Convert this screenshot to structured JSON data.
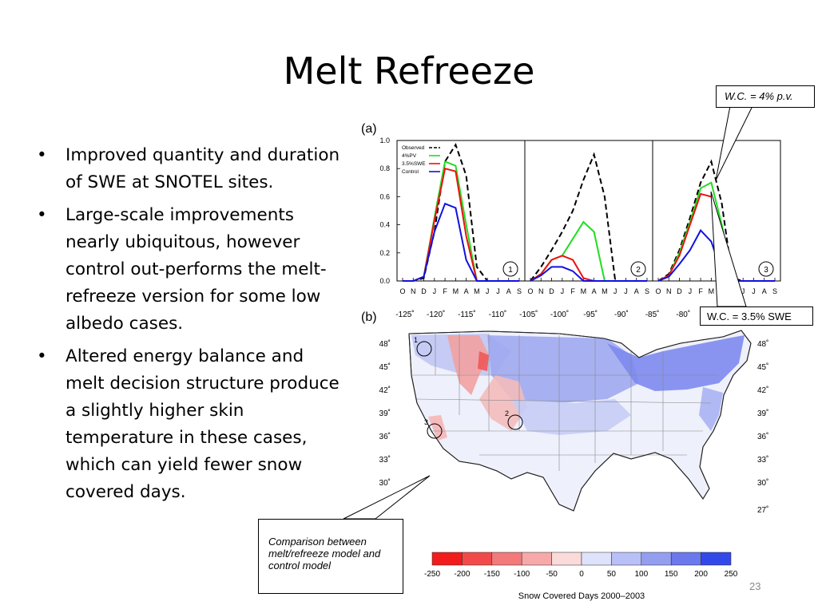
{
  "slide": {
    "title": "Melt Refreeze",
    "bullets": [
      "Improved quantity and duration of SWE at SNOTEL sites.",
      "Large-scale improvements nearly ubiquitous, however control out-performs the melt-refreeze version for some low albedo cases.",
      "Altered energy balance and melt decision structure produce a slightly higher skin temperature in these cases, which can yield fewer snow covered days."
    ],
    "bullet_glyph": "•",
    "page_number": "23"
  },
  "callouts": {
    "wc_pv": "W.C. = 4% p.v.",
    "wc_swe": "W.C. = 3.5% SWE",
    "comparison": "Comparison between melt/refreeze model and control model"
  },
  "panel_a": {
    "label": "(a)",
    "y_ticks": [
      "1.0",
      "0.8",
      "0.6",
      "0.4",
      "0.2",
      "0.0"
    ],
    "months": [
      "O",
      "N",
      "D",
      "J",
      "F",
      "M",
      "A",
      "M",
      "J",
      "J",
      "A",
      "S"
    ],
    "legend": [
      "Observed",
      "4%PV",
      "3.5%SWE",
      "Control"
    ],
    "site_labels": [
      "1",
      "2",
      "3"
    ],
    "colors": {
      "Observed": "#000000",
      "4%PV": "#22dd22",
      "3.5%SWE": "#ee1111",
      "Control": "#1111dd"
    }
  },
  "panel_b": {
    "label": "(b)",
    "lon_labels": [
      "-125˚",
      "-120˚",
      "-115˚",
      "-110˚",
      "-105˚",
      "-100˚",
      "-95˚",
      "-90˚",
      "-85˚",
      "-80˚"
    ],
    "lat_labels": [
      "48˚",
      "45˚",
      "42˚",
      "39˚",
      "36˚",
      "33˚",
      "30˚",
      "27˚"
    ],
    "site_markers": [
      "1",
      "2",
      "3"
    ],
    "colorbar_ticks": [
      "-250",
      "-200",
      "-150",
      "-100",
      "-50",
      "0",
      "50",
      "100",
      "150",
      "200",
      "250"
    ],
    "colorbar_colors": [
      "#f21c1c",
      "#f24a4a",
      "#f27a7a",
      "#f7a9a9",
      "#fbdada",
      "#dfe2fb",
      "#b9c0f7",
      "#939ef0",
      "#6b79ec",
      "#3348e8"
    ],
    "colorbar_label": "Snow Covered Days 2000–2003"
  },
  "chart_data": [
    {
      "type": "line",
      "panel": "1",
      "x": [
        "O",
        "N",
        "D",
        "J",
        "F",
        "M",
        "A",
        "M",
        "J",
        "J",
        "A",
        "S"
      ],
      "ylim": [
        0,
        1
      ],
      "series": [
        {
          "name": "Observed",
          "values": [
            0,
            0,
            0.02,
            0.35,
            0.85,
            0.97,
            0.75,
            0.1,
            0,
            0,
            0,
            0
          ]
        },
        {
          "name": "4%PV",
          "values": [
            0,
            0,
            0.03,
            0.45,
            0.85,
            0.82,
            0.4,
            0,
            0,
            0,
            0,
            0
          ]
        },
        {
          "name": "3.5%SWE",
          "values": [
            0,
            0,
            0.03,
            0.43,
            0.8,
            0.78,
            0.32,
            0,
            0,
            0,
            0,
            0
          ]
        },
        {
          "name": "Control",
          "values": [
            0,
            0,
            0.03,
            0.35,
            0.55,
            0.52,
            0.15,
            0,
            0,
            0,
            0,
            0
          ]
        }
      ]
    },
    {
      "type": "line",
      "panel": "2",
      "x": [
        "O",
        "N",
        "D",
        "J",
        "F",
        "M",
        "A",
        "M",
        "J",
        "J",
        "A",
        "S"
      ],
      "ylim": [
        0,
        1
      ],
      "series": [
        {
          "name": "Observed",
          "values": [
            0,
            0.1,
            0.22,
            0.35,
            0.5,
            0.72,
            0.9,
            0.6,
            0,
            0,
            0,
            0
          ]
        },
        {
          "name": "4%PV",
          "values": [
            0,
            0.05,
            0.15,
            0.18,
            0.3,
            0.42,
            0.35,
            0,
            0,
            0,
            0,
            0
          ]
        },
        {
          "name": "3.5%SWE",
          "values": [
            0,
            0.05,
            0.15,
            0.18,
            0.15,
            0.02,
            0,
            0,
            0,
            0,
            0,
            0
          ]
        },
        {
          "name": "Control",
          "values": [
            0,
            0.04,
            0.1,
            0.1,
            0.07,
            0,
            0,
            0,
            0,
            0,
            0,
            0
          ]
        }
      ]
    },
    {
      "type": "line",
      "panel": "3",
      "x": [
        "O",
        "N",
        "D",
        "J",
        "F",
        "M",
        "A",
        "M",
        "J",
        "J",
        "A",
        "S"
      ],
      "ylim": [
        0,
        1
      ],
      "series": [
        {
          "name": "Observed",
          "values": [
            0,
            0.05,
            0.22,
            0.45,
            0.7,
            0.85,
            0.55,
            0.02,
            0,
            0,
            0,
            0
          ]
        },
        {
          "name": "4%PV",
          "values": [
            0,
            0.04,
            0.2,
            0.42,
            0.66,
            0.7,
            0.4,
            0,
            0,
            0,
            0,
            0
          ]
        },
        {
          "name": "3.5%SWE",
          "values": [
            0,
            0.04,
            0.18,
            0.4,
            0.62,
            0.6,
            0.32,
            0,
            0,
            0,
            0,
            0
          ]
        },
        {
          "name": "Control",
          "values": [
            0,
            0.03,
            0.12,
            0.22,
            0.36,
            0.28,
            0.06,
            0,
            0,
            0,
            0,
            0
          ]
        }
      ]
    }
  ]
}
